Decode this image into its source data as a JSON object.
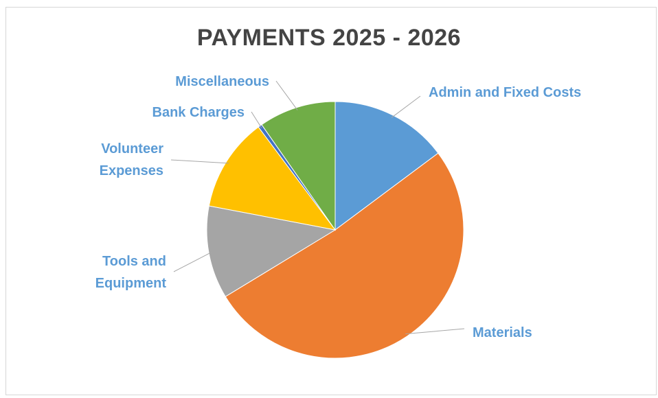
{
  "chart_data": {
    "type": "pie",
    "title": "PAYMENTS 2025 - 2026",
    "slices": [
      {
        "label": [
          "Admin and Fixed Costs"
        ],
        "value": 14.8,
        "color": "#5B9BD5"
      },
      {
        "label": [
          "Materials"
        ],
        "value": 51.5,
        "color": "#ED7D31"
      },
      {
        "label": [
          "Tools and",
          "Equipment"
        ],
        "value": 11.7,
        "color": "#A5A5A5"
      },
      {
        "label": [
          "Volunteer",
          "Expenses"
        ],
        "value": 11.8,
        "color": "#FFC000"
      },
      {
        "label": [
          "Bank Charges"
        ],
        "value": 0.5,
        "color": "#4472C4"
      },
      {
        "label": [
          "Miscellaneous"
        ],
        "value": 9.7,
        "color": "#70AD47"
      }
    ],
    "label_color": "#5B9BD5",
    "legend": "none"
  }
}
